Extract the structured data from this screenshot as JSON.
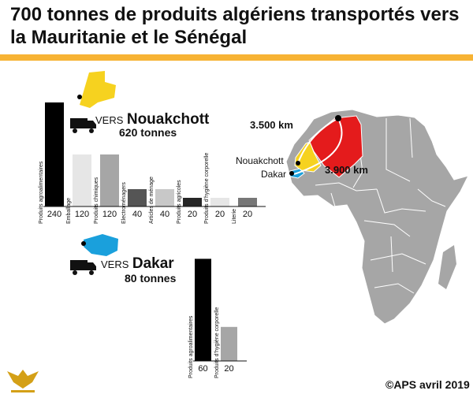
{
  "title": "700 tonnes de produits algériens transportés vers la Mauritanie et le Sénégal",
  "colors": {
    "accent": "#f7b334",
    "algeria": "#e41b1c",
    "mauritania": "#f6d21f",
    "senegal": "#1aa0dc",
    "africa": "#a6a6a6"
  },
  "nouakchott": {
    "vers": "VERS",
    "city": "Nouakchott",
    "tonnes": "620 tonnes"
  },
  "dakar": {
    "vers": "VERS",
    "city": "Dakar",
    "tonnes": "80 tonnes"
  },
  "map": {
    "label_nouakchott": "Nouakchott",
    "label_dakar": "Dakar",
    "dist_nouakchott": "3.500 km",
    "dist_dakar": "3.900 km"
  },
  "credit": "©APS avril 2019",
  "chart_data": [
    {
      "type": "bar",
      "categories": [
        "Produits agroalimentaires",
        "Emballage",
        "Produits chimiques",
        "Electroménagers",
        "Articles de ménage",
        "Produits agricoles",
        "Produits d’hygiène corporelle",
        "Literie"
      ],
      "values": [
        240,
        120,
        120,
        40,
        40,
        20,
        20,
        20
      ],
      "value_labels": [
        "240",
        "120",
        "120",
        "40",
        "40",
        "20",
        "20",
        "20"
      ],
      "colors": [
        "#000000",
        "#e6e6e6",
        "#a6a6a6",
        "#555555",
        "#c8c8c8",
        "#262626",
        "#e6e6e6",
        "#777777"
      ]
    },
    {
      "type": "bar",
      "categories": [
        "Produits agroalimentaires",
        "Produits d’hygiène corporelle"
      ],
      "values": [
        60,
        20
      ],
      "value_labels": [
        "60",
        "20"
      ],
      "colors": [
        "#000000",
        "#a6a6a6"
      ]
    }
  ]
}
